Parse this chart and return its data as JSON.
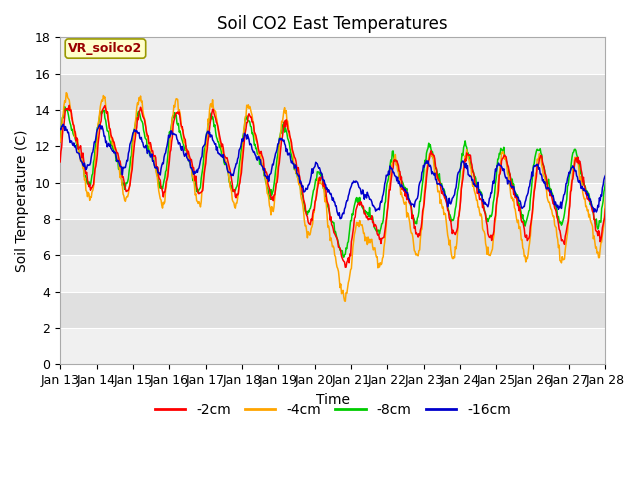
{
  "title": "Soil CO2 East Temperatures",
  "xlabel": "Time",
  "ylabel": "Soil Temperature (C)",
  "legend_label": "VR_soilco2",
  "series_labels": [
    "-2cm",
    "-4cm",
    "-8cm",
    "-16cm"
  ],
  "series_colors": [
    "#ff0000",
    "#ffa500",
    "#00cc00",
    "#0000cc"
  ],
  "ylim": [
    0,
    18
  ],
  "yticks": [
    0,
    2,
    4,
    6,
    8,
    10,
    12,
    14,
    16,
    18
  ],
  "xtick_labels": [
    "Jan 13",
    "Jan 14",
    "Jan 15",
    "Jan 16",
    "Jan 17",
    "Jan 18",
    "Jan 19",
    "Jan 20",
    "Jan 21",
    "Jan 22",
    "Jan 23",
    "Jan 24",
    "Jan 25",
    "Jan 26",
    "Jan 27",
    "Jan 28"
  ],
  "background_color": "#ffffff",
  "plot_bg_light": "#f0f0f0",
  "plot_bg_dark": "#e0e0e0",
  "grid_color": "#ffffff",
  "title_fontsize": 12,
  "axis_label_fontsize": 10,
  "tick_fontsize": 9,
  "legend_box_facecolor": "#ffffcc",
  "legend_text_color": "#990000",
  "legend_box_edgecolor": "#999900"
}
